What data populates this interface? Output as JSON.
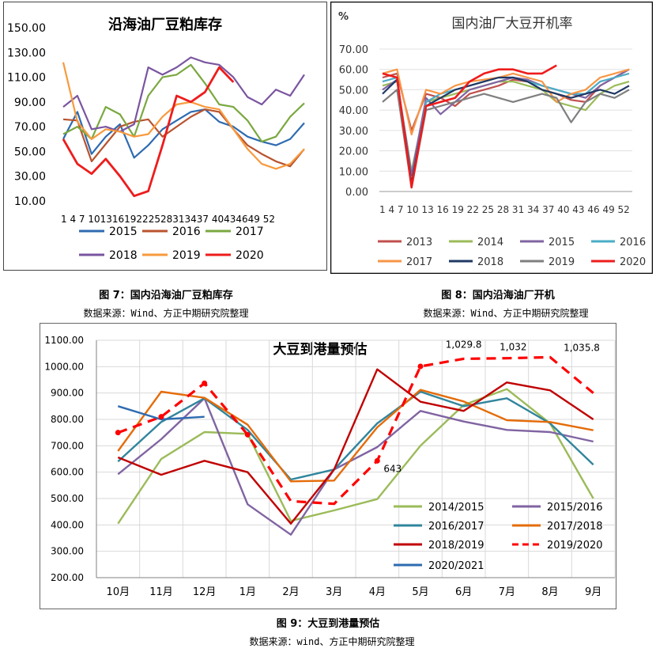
{
  "figures": {
    "fig7": {
      "caption": "图 7：国内沿海油厂豆粕库存",
      "source": "数据来源：Wind、方正中期研究院整理"
    },
    "fig8": {
      "caption": "图 8：国内沿海油厂开机",
      "source": "数据来源：Wind、方正中期研究院整理"
    },
    "fig9": {
      "caption": "图 9：大豆到港量预估",
      "source": "数据来源：wind、方正中期研究院整理"
    }
  },
  "chart_data": [
    {
      "id": "fig7",
      "type": "line",
      "title": "沿海油厂豆粕库存",
      "xlabel": "",
      "ylabel": "",
      "ylim": [
        10,
        150
      ],
      "yticks": [
        "150.00",
        "130.00",
        "110.00",
        "90.00",
        "70.00",
        "50.00",
        "30.00",
        "10.00"
      ],
      "xticks": [
        "1",
        "4",
        "7",
        "10",
        "13",
        "16",
        "19",
        "22",
        "25",
        "28",
        "31",
        "34",
        "37",
        "40",
        "43",
        "46",
        "49",
        "52"
      ],
      "xtick_text": "1  4  7 10131619222528313437 40434649 52",
      "x": [
        1,
        4,
        7,
        10,
        13,
        16,
        19,
        22,
        25,
        28,
        31,
        34,
        37,
        40,
        43,
        46,
        49,
        52
      ],
      "legend_position": "bottom",
      "series": [
        {
          "name": "2015",
          "color": "#2e6bb0",
          "values": [
            60,
            82,
            48,
            62,
            72,
            45,
            55,
            68,
            75,
            82,
            84,
            74,
            70,
            62,
            58,
            55,
            60,
            73
          ]
        },
        {
          "name": "2016",
          "color": "#b8532e",
          "values": [
            76,
            75,
            42,
            56,
            70,
            74,
            76,
            62,
            70,
            78,
            84,
            82,
            68,
            55,
            48,
            42,
            38,
            52
          ]
        },
        {
          "name": "2017",
          "color": "#7aa840",
          "values": [
            64,
            70,
            60,
            86,
            80,
            62,
            95,
            110,
            112,
            120,
            105,
            88,
            86,
            75,
            58,
            62,
            78,
            89
          ]
        },
        {
          "name": "2018",
          "color": "#7a55a0",
          "values": [
            86,
            95,
            68,
            70,
            66,
            72,
            118,
            112,
            118,
            126,
            122,
            120,
            110,
            94,
            88,
            100,
            95,
            112
          ]
        },
        {
          "name": "2019",
          "color": "#f79a3d",
          "values": [
            122,
            74,
            60,
            68,
            66,
            62,
            64,
            78,
            88,
            90,
            86,
            84,
            68,
            52,
            40,
            36,
            40,
            52
          ]
        },
        {
          "name": "2020",
          "color": "#ee1c1c",
          "values": [
            60,
            40,
            32,
            44,
            30,
            14,
            18,
            55,
            95,
            90,
            98,
            118,
            106,
            null,
            null,
            null,
            null,
            null
          ]
        }
      ]
    },
    {
      "id": "fig8",
      "type": "line",
      "title": "国内油厂大豆开机率",
      "ylabel": "%",
      "ylim": [
        0,
        70
      ],
      "yticks": [
        "70.00",
        "60.00",
        "50.00",
        "40.00",
        "30.00",
        "20.00",
        "10.00",
        "0.00"
      ],
      "xticks": [
        "1",
        "4",
        "7",
        "10",
        "13",
        "16",
        "19",
        "22",
        "25",
        "28",
        "31",
        "34",
        "37",
        "40",
        "43",
        "46",
        "49",
        "52"
      ],
      "xtick_text": "1  4  7 10 13 16 19 22 25 28 31 34 37 40 43 46 49 52",
      "x": [
        1,
        4,
        7,
        10,
        13,
        16,
        19,
        22,
        25,
        28,
        31,
        34,
        37,
        40,
        43,
        46,
        49,
        52
      ],
      "legend_position": "bottom",
      "series": [
        {
          "name": "2013",
          "color": "#c0504d",
          "values": [
            56,
            58,
            30,
            48,
            46,
            42,
            48,
            50,
            52,
            55,
            54,
            50,
            48,
            45,
            44,
            52,
            56,
            60
          ]
        },
        {
          "name": "2014",
          "color": "#9bbb59",
          "values": [
            52,
            54,
            10,
            44,
            46,
            48,
            50,
            52,
            54,
            54,
            52,
            50,
            44,
            42,
            40,
            48,
            52,
            54
          ]
        },
        {
          "name": "2015",
          "color": "#8064a2",
          "values": [
            50,
            55,
            8,
            46,
            38,
            44,
            50,
            52,
            54,
            56,
            55,
            52,
            50,
            48,
            46,
            52,
            56,
            60
          ]
        },
        {
          "name": "2016",
          "color": "#4bacc6",
          "values": [
            54,
            56,
            2,
            44,
            48,
            50,
            52,
            54,
            56,
            56,
            54,
            52,
            50,
            48,
            48,
            54,
            56,
            58
          ]
        },
        {
          "name": "2017",
          "color": "#f79646",
          "values": [
            58,
            60,
            28,
            50,
            48,
            52,
            54,
            55,
            56,
            58,
            56,
            54,
            44,
            48,
            50,
            56,
            58,
            60
          ]
        },
        {
          "name": "2018",
          "color": "#1f3864",
          "values": [
            48,
            55,
            4,
            42,
            46,
            50,
            52,
            54,
            56,
            56,
            54,
            50,
            48,
            46,
            48,
            50,
            48,
            52
          ]
        },
        {
          "name": "2019",
          "color": "#7f7f7f",
          "values": [
            44,
            50,
            2,
            40,
            42,
            44,
            46,
            48,
            46,
            44,
            46,
            48,
            46,
            34,
            44,
            48,
            46,
            50
          ]
        },
        {
          "name": "2020",
          "color": "#ee1c1c",
          "values": [
            58,
            56,
            2,
            42,
            44,
            46,
            54,
            58,
            60,
            60,
            58,
            58,
            62,
            null,
            null,
            null,
            null,
            null
          ]
        }
      ]
    },
    {
      "id": "fig9",
      "type": "line",
      "title": "大豆到港量预估",
      "ylim": [
        200,
        1100
      ],
      "yticks": [
        "1100.00",
        "1000.00",
        "900.00",
        "800.00",
        "700.00",
        "600.00",
        "500.00",
        "400.00",
        "300.00",
        "200.00"
      ],
      "categories": [
        "10月",
        "11月",
        "12月",
        "1月",
        "2月",
        "3月",
        "4月",
        "5月",
        "6月",
        "7月",
        "8月",
        "9月"
      ],
      "legend_position": "bottom-right",
      "annotations": [
        "1,029.8",
        "1,032",
        "1,035.8",
        "643"
      ],
      "series": [
        {
          "name": "2014/2015",
          "color": "#9bbb59",
          "dashed": false,
          "values": [
            405,
            650,
            752,
            745,
            415,
            455,
            498,
            700,
            855,
            915,
            785,
            500
          ]
        },
        {
          "name": "2015/2016",
          "color": "#8064a2",
          "dashed": false,
          "values": [
            592,
            725,
            880,
            478,
            363,
            610,
            695,
            832,
            792,
            760,
            752,
            716
          ]
        },
        {
          "name": "2016/2017",
          "color": "#31859c",
          "dashed": false,
          "values": [
            640,
            790,
            880,
            760,
            572,
            610,
            785,
            905,
            850,
            880,
            785,
            628
          ]
        },
        {
          "name": "2017/2018",
          "color": "#e46c0a",
          "dashed": false,
          "values": [
            680,
            905,
            882,
            780,
            565,
            568,
            770,
            912,
            868,
            797,
            790,
            759
          ]
        },
        {
          "name": "2018/2019",
          "color": "#c00000",
          "dashed": false,
          "values": [
            656,
            590,
            643,
            600,
            405,
            610,
            990,
            867,
            832,
            940,
            910,
            800
          ]
        },
        {
          "name": "2019/2020",
          "color": "#ff0000",
          "dashed": true,
          "values": [
            750,
            810,
            937,
            742,
            490,
            480,
            643,
            1001,
            1029.8,
            1032,
            1035.8,
            900
          ]
        },
        {
          "name": "2020/2021",
          "color": "#2e6bb0",
          "dashed": false,
          "values": [
            850,
            800,
            810,
            null,
            null,
            null,
            null,
            null,
            null,
            null,
            null,
            null
          ]
        }
      ]
    }
  ]
}
